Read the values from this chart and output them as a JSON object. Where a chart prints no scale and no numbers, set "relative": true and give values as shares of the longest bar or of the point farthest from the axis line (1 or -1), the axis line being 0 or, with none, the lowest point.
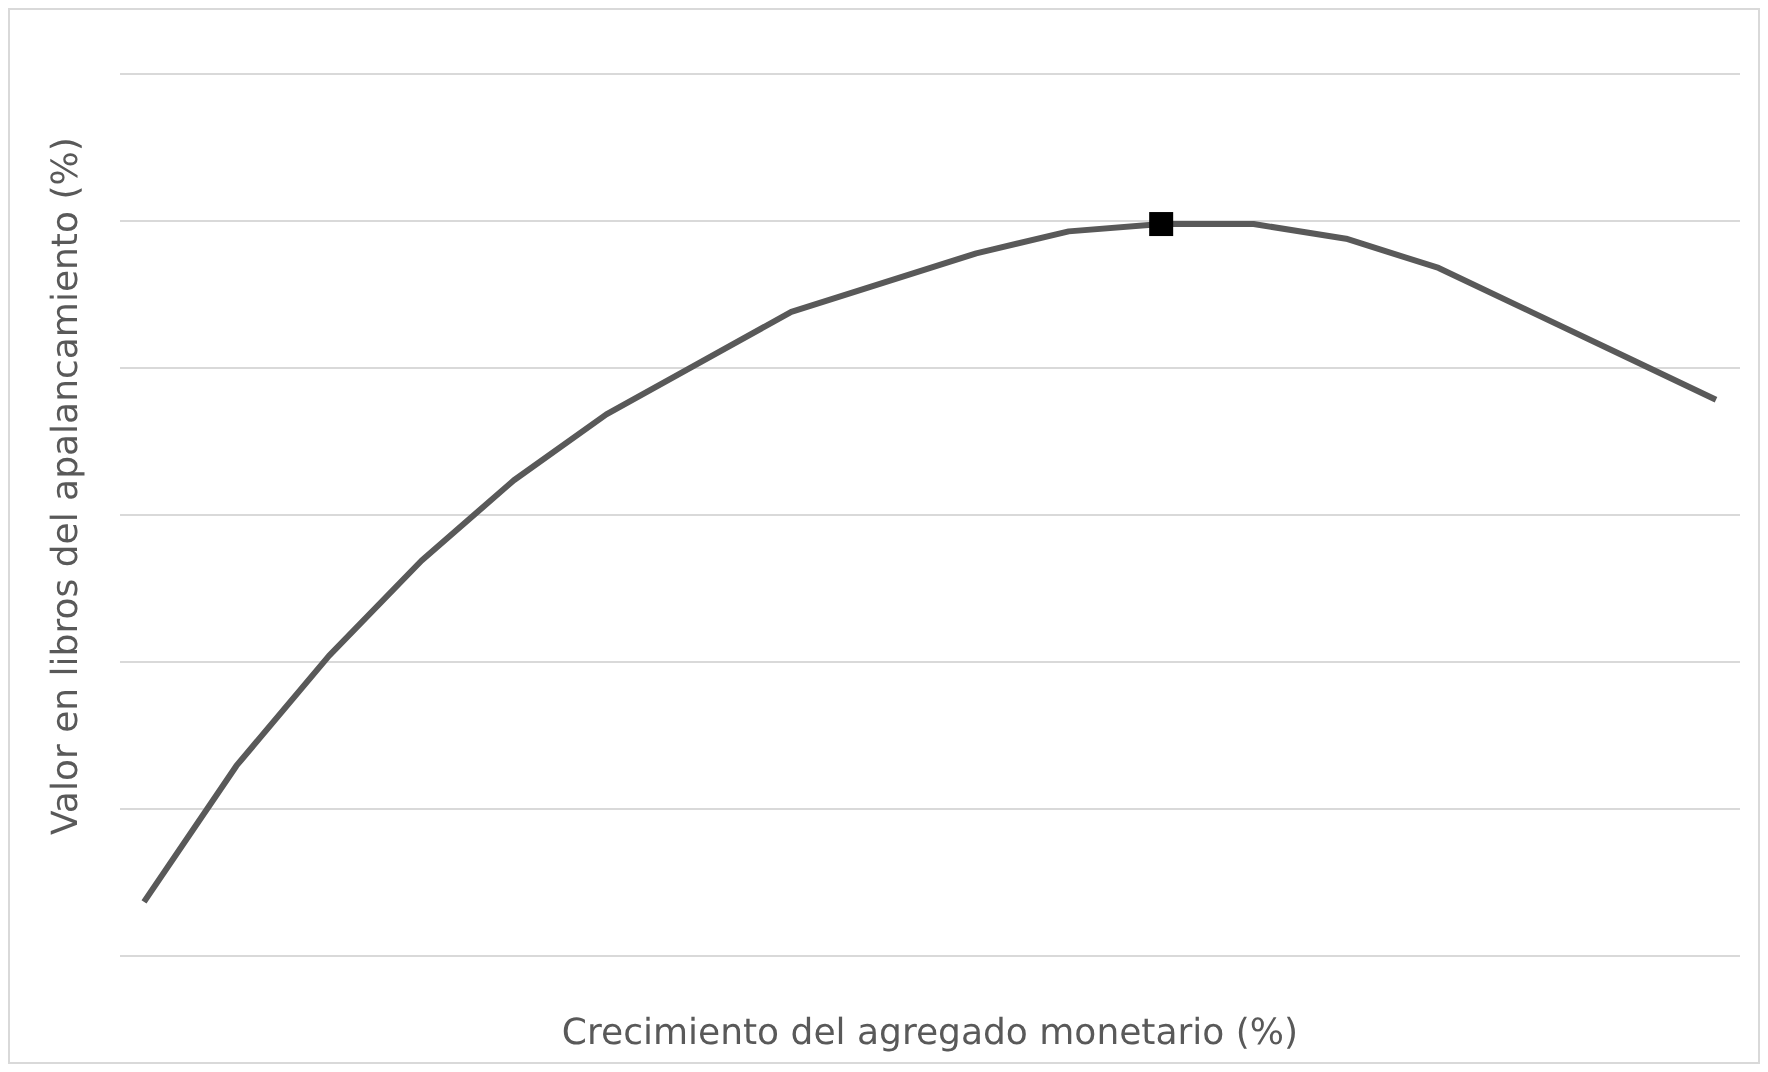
{
  "chart_data": {
    "type": "line",
    "relative": true,
    "xlabel": "Crecimiento del agregado monetario (%)",
    "ylabel": "Valor en libros del apalancamiento (%)",
    "grid": "y",
    "categories": [
      null,
      null,
      null,
      null,
      null,
      null,
      null,
      null,
      null,
      null,
      null,
      null,
      null,
      null,
      null,
      null,
      null,
      null
    ],
    "series": [
      {
        "color": "#595959",
        "marker": "none",
        "values": [
          0.074,
          0.26,
          0.41,
          0.54,
          0.65,
          0.74,
          0.81,
          0.88,
          0.92,
          0.96,
          0.99,
          1,
          1,
          0.98,
          0.94,
          0.88,
          0.82,
          0.76
        ]
      },
      {
        "type": "line",
        "color": "#000000",
        "marker": "square",
        "values": [
          null,
          null,
          null,
          null,
          null,
          null,
          null,
          null,
          null,
          null,
          null,
          1,
          null,
          null,
          null,
          null,
          null,
          null
        ]
      }
    ]
  }
}
